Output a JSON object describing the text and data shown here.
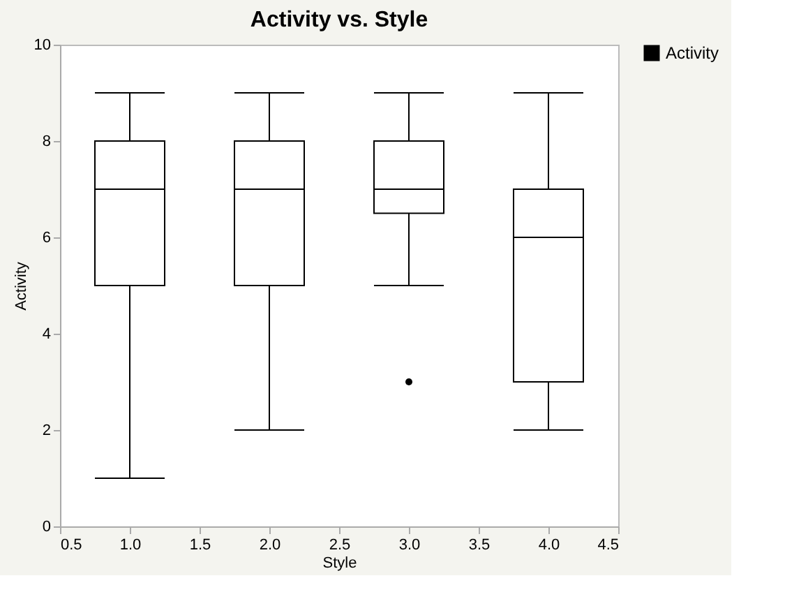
{
  "chart_data": {
    "type": "box",
    "title": "Activity vs. Style",
    "xlabel": "Style",
    "ylabel": "Activity",
    "x": [
      1,
      2,
      3,
      4
    ],
    "series": [
      {
        "name": "Activity",
        "color": "#000000",
        "boxes": [
          {
            "low": 1,
            "q1": 5,
            "median": 7,
            "q3": 8,
            "high": 9
          },
          {
            "low": 2,
            "q1": 5,
            "median": 7,
            "q3": 8,
            "high": 9
          },
          {
            "low": 5,
            "q1": 6.5,
            "median": 7,
            "q3": 8,
            "high": 9,
            "outliers": [
              3
            ]
          },
          {
            "low": 2,
            "q1": 3,
            "median": 6,
            "q3": 7,
            "high": 9
          }
        ]
      }
    ],
    "xlim": [
      0.5,
      4.5
    ],
    "xticks": [
      0.5,
      {
        "value": 1,
        "label": "1.0"
      },
      1.5,
      {
        "value": 2,
        "label": "2.0"
      },
      2.5,
      {
        "value": 3,
        "label": "3.0"
      },
      3.5,
      {
        "value": 4,
        "label": "4.0"
      },
      4.5
    ],
    "ylim": [
      0,
      10
    ],
    "yticks": [
      0,
      2,
      4,
      6,
      8,
      10
    ],
    "legend": "top right",
    "grid": false
  }
}
